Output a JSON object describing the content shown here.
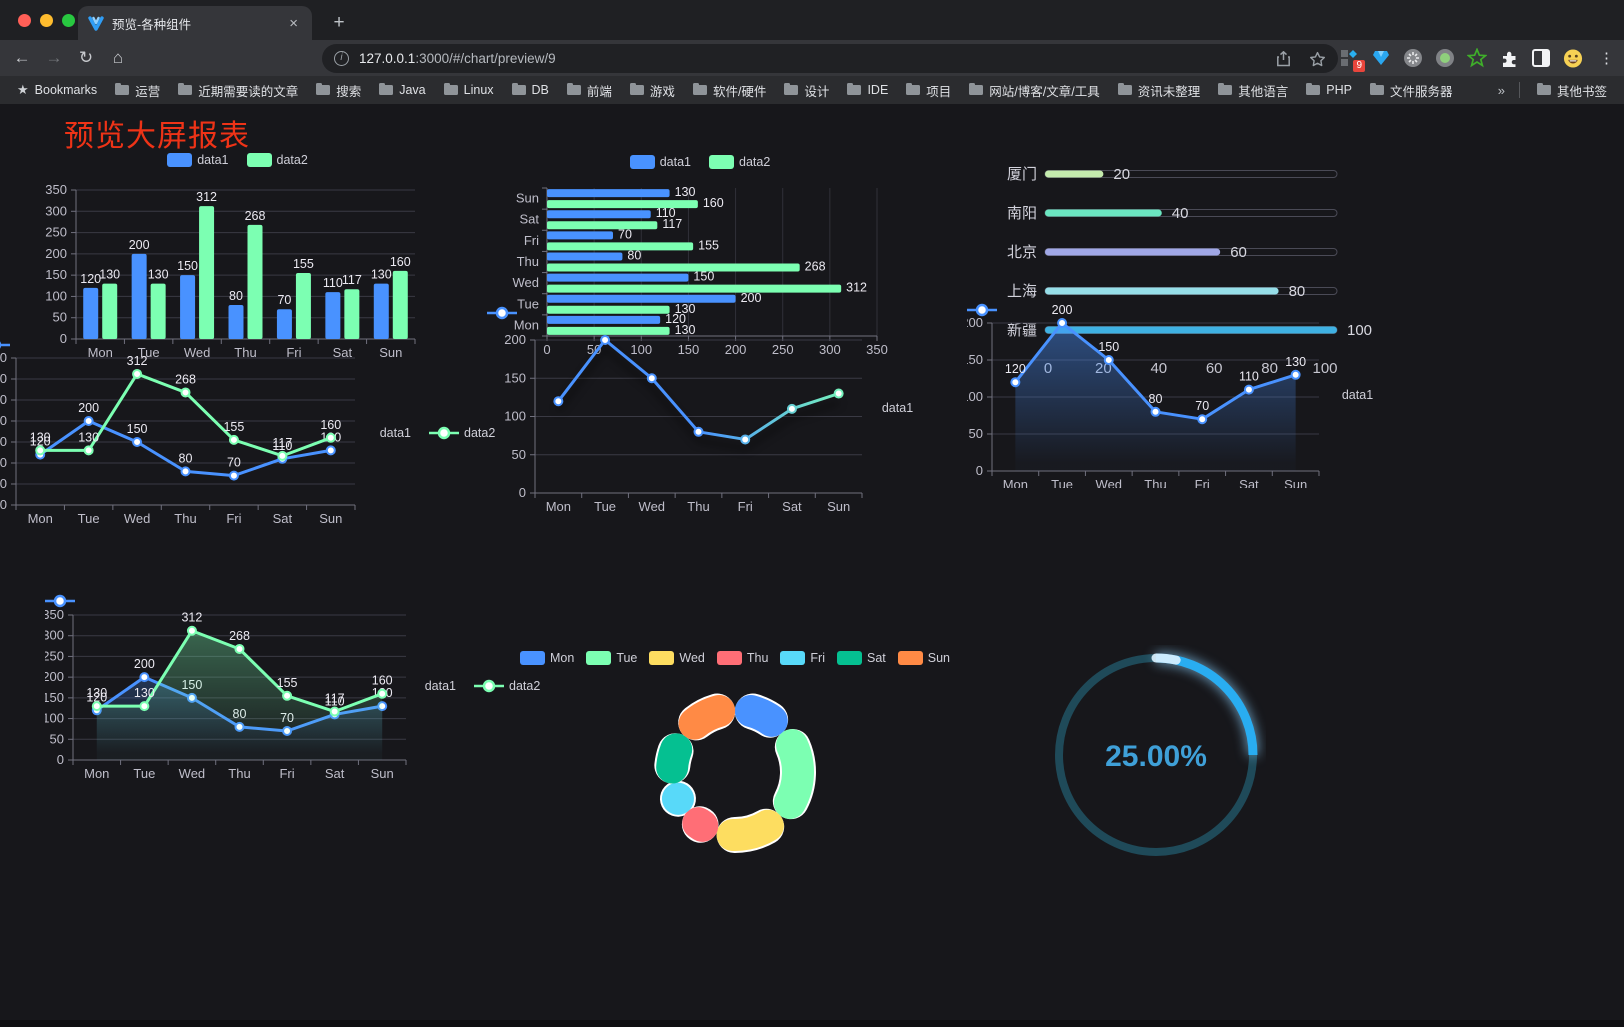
{
  "browser": {
    "window_controls": [
      "close",
      "minimize",
      "zoom"
    ],
    "tab": {
      "title": "预览-各种组件",
      "close_label": "×",
      "new_tab_label": "+"
    },
    "toolbar": {
      "url_host": "127.0.0.1",
      "url_rest": ":3000/#/chart/preview/9",
      "info_label": "i"
    },
    "extensions_badge": "9",
    "bookmarks": {
      "root_label": "Bookmarks",
      "folders": [
        "运营",
        "近期需要读的文章",
        "搜索",
        "Java",
        "Linux",
        "DB",
        "前端",
        "游戏",
        "软件/硬件",
        "设计",
        "IDE",
        "项目",
        "网站/博客/文章/工具",
        "资讯未整理",
        "其他语言",
        "PHP",
        "文件服务器"
      ],
      "overflow_label": "»",
      "other_label": "其他书签"
    }
  },
  "page": {
    "title": "预览大屏报表",
    "title_color": "#ee3317"
  },
  "palette": {
    "data1": "#4992ff",
    "data2": "#7cffb2",
    "axis_label": "#bfbeca",
    "grid_line": "#3a3a44",
    "axis_line": "#70707e",
    "value_label": "#eceaf2"
  },
  "chart_data": [
    {
      "name": "grouped-bar",
      "type": "bar",
      "categories": [
        "Mon",
        "Tue",
        "Wed",
        "Thu",
        "Fri",
        "Sat",
        "Sun"
      ],
      "series": [
        {
          "name": "data1",
          "color": "#4992ff",
          "values": [
            120,
            200,
            150,
            80,
            70,
            110,
            130
          ]
        },
        {
          "name": "data2",
          "color": "#7cffb2",
          "values": [
            130,
            130,
            312,
            268,
            155,
            117,
            160
          ]
        }
      ],
      "ylim": [
        0,
        350
      ],
      "ystep": 50,
      "grid": true,
      "value_labels": true,
      "legend_position": "top"
    },
    {
      "name": "horizontal-bar",
      "type": "bar",
      "orientation": "horizontal",
      "categories": [
        "Mon",
        "Tue",
        "Wed",
        "Thu",
        "Fri",
        "Sat",
        "Sun"
      ],
      "display_order_top_to_bottom": [
        "Sun",
        "Sat",
        "Fri",
        "Thu",
        "Wed",
        "Tue",
        "Mon"
      ],
      "series": [
        {
          "name": "data1",
          "color": "#4992ff",
          "values": [
            120,
            200,
            150,
            80,
            70,
            110,
            130
          ]
        },
        {
          "name": "data2",
          "color": "#7cffb2",
          "values": [
            130,
            130,
            312,
            268,
            155,
            117,
            160
          ]
        }
      ],
      "xlim": [
        0,
        350
      ],
      "xstep": 50,
      "grid": true,
      "value_labels": true,
      "legend_position": "top"
    },
    {
      "name": "progress-list",
      "type": "bar",
      "orientation": "horizontal",
      "items": [
        {
          "label": "厦门",
          "value": 20,
          "color": "#c4ebad"
        },
        {
          "label": "南阳",
          "value": 40,
          "color": "#6be6c1"
        },
        {
          "label": "北京",
          "value": 60,
          "color": "#a0a7e6"
        },
        {
          "label": "上海",
          "value": 80,
          "color": "#96dee8"
        },
        {
          "label": "新疆",
          "value": 100,
          "color": "#3fb1e3"
        }
      ],
      "xlim": [
        0,
        100
      ],
      "xticks": [
        0,
        20,
        40,
        60,
        80,
        100
      ],
      "value_labels": true
    },
    {
      "name": "line-two-series",
      "type": "line",
      "categories": [
        "Mon",
        "Tue",
        "Wed",
        "Thu",
        "Fri",
        "Sat",
        "Sun"
      ],
      "series": [
        {
          "name": "data1",
          "color": "#4992ff",
          "values": [
            120,
            200,
            150,
            80,
            70,
            110,
            130
          ]
        },
        {
          "name": "data2",
          "color": "#7cffb2",
          "values": [
            130,
            130,
            312,
            268,
            155,
            117,
            160
          ]
        }
      ],
      "ylim": [
        0,
        350
      ],
      "ystep": 50,
      "value_labels": true,
      "legend_position": "top"
    },
    {
      "name": "line-gradient",
      "type": "line",
      "categories": [
        "Mon",
        "Tue",
        "Wed",
        "Thu",
        "Fri",
        "Sat",
        "Sun"
      ],
      "series": [
        {
          "name": "data1",
          "color_start": "#4992ff",
          "color_end": "#7cffb2",
          "values": [
            120,
            200,
            150,
            80,
            70,
            110,
            130
          ]
        }
      ],
      "ylim": [
        0,
        200
      ],
      "ystep": 50,
      "value_labels": false,
      "legend_position": "top"
    },
    {
      "name": "area-single",
      "type": "area",
      "categories": [
        "Mon",
        "Tue",
        "Wed",
        "Thu",
        "Fri",
        "Sat",
        "Sun"
      ],
      "series": [
        {
          "name": "data1",
          "color": "#4992ff",
          "area_alpha": 0.45,
          "values": [
            120,
            200,
            150,
            80,
            70,
            110,
            130
          ]
        }
      ],
      "ylim": [
        0,
        200
      ],
      "ystep": 50,
      "value_labels": true,
      "legend_position": "top"
    },
    {
      "name": "area-two-series",
      "type": "area",
      "categories": [
        "Mon",
        "Tue",
        "Wed",
        "Thu",
        "Fri",
        "Sat",
        "Sun"
      ],
      "series": [
        {
          "name": "data1",
          "color": "#4992ff",
          "area_alpha": 0.45,
          "values": [
            120,
            200,
            150,
            80,
            70,
            110,
            130
          ]
        },
        {
          "name": "data2",
          "color": "#7cffb2",
          "area_alpha": 0.38,
          "values": [
            130,
            130,
            312,
            268,
            155,
            117,
            160
          ]
        }
      ],
      "ylim": [
        0,
        350
      ],
      "ystep": 50,
      "value_labels": true,
      "legend_position": "top"
    },
    {
      "name": "donut-pie",
      "type": "pie",
      "items": [
        {
          "label": "Mon",
          "value": 120,
          "color": "#4992ff"
        },
        {
          "label": "Tue",
          "value": 200,
          "color": "#7cffb2"
        },
        {
          "label": "Wed",
          "value": 150,
          "color": "#fddd60"
        },
        {
          "label": "Thu",
          "value": 80,
          "color": "#ff6e76"
        },
        {
          "label": "Fri",
          "value": 70,
          "color": "#58d9f9"
        },
        {
          "label": "Sat",
          "value": 110,
          "color": "#05c091"
        },
        {
          "label": "Sun",
          "value": 130,
          "color": "#ff8a45"
        }
      ],
      "legend_position": "top",
      "border_color": "#ffffff"
    },
    {
      "name": "gauge-progress",
      "type": "gauge",
      "value": 25,
      "display": "25.00%",
      "progress_color": "#29adf1",
      "track_color": "#1f4a59",
      "text_color": "#3fa0d8"
    }
  ]
}
